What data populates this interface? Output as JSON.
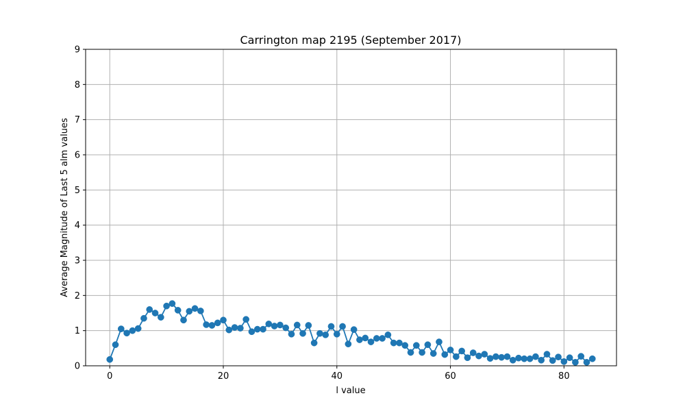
{
  "chart_data": {
    "type": "line",
    "title": "Carrington map 2195 (September 2017)",
    "xlabel": "l value",
    "ylabel": "Average Magnitude of Last 5 alm values",
    "xlim": [
      -4.25,
      89.25
    ],
    "ylim": [
      0,
      9
    ],
    "xticks": [
      0,
      20,
      40,
      60,
      80
    ],
    "yticks": [
      0,
      1,
      2,
      3,
      4,
      5,
      6,
      7,
      8,
      9
    ],
    "grid": true,
    "marker": "circle",
    "colors": {
      "series": "#1f77b4",
      "grid": "#b0b0b0",
      "axis": "#000000"
    },
    "series": [
      {
        "x": [
          0,
          1,
          2,
          3,
          4,
          5,
          6,
          7,
          8,
          9,
          10,
          11,
          12,
          13,
          14,
          15,
          16,
          17,
          18,
          19,
          20,
          21,
          22,
          23,
          24,
          25,
          26,
          27,
          28,
          29,
          30,
          31,
          32,
          33,
          34,
          35,
          36,
          37,
          38,
          39,
          40,
          41,
          42,
          43,
          44,
          45,
          46,
          47,
          48,
          49,
          50,
          51,
          52,
          53,
          54,
          55,
          56,
          57,
          58,
          59,
          60,
          61,
          62,
          63,
          64,
          65,
          66,
          67,
          68,
          69,
          70,
          71,
          72,
          73,
          74,
          75,
          76,
          77,
          78,
          79,
          80,
          81,
          82,
          83,
          84,
          85
        ],
        "y": [
          0.18,
          0.6,
          1.05,
          0.93,
          1.0,
          1.06,
          1.35,
          1.6,
          1.5,
          1.38,
          1.7,
          1.77,
          1.58,
          1.3,
          1.55,
          1.63,
          1.56,
          1.17,
          1.15,
          1.22,
          1.3,
          1.02,
          1.09,
          1.07,
          1.32,
          0.97,
          1.04,
          1.04,
          1.19,
          1.13,
          1.16,
          1.08,
          0.9,
          1.16,
          0.92,
          1.15,
          0.65,
          0.92,
          0.88,
          1.12,
          0.9,
          1.12,
          0.62,
          1.03,
          0.74,
          0.79,
          0.68,
          0.78,
          0.78,
          0.88,
          0.65,
          0.65,
          0.58,
          0.38,
          0.58,
          0.38,
          0.6,
          0.35,
          0.68,
          0.32,
          0.45,
          0.26,
          0.42,
          0.23,
          0.37,
          0.28,
          0.33,
          0.21,
          0.26,
          0.24,
          0.26,
          0.16,
          0.22,
          0.2,
          0.2,
          0.26,
          0.16,
          0.33,
          0.15,
          0.25,
          0.12,
          0.23,
          0.1,
          0.27,
          0.1,
          0.2
        ]
      }
    ]
  }
}
